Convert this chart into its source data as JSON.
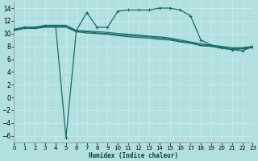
{
  "xlabel": "Humidex (Indice chaleur)",
  "background_color": "#b2dfdf",
  "grid_color": "#c8e8e8",
  "line_color": "#1a6b6b",
  "x_ticks": [
    0,
    1,
    2,
    3,
    4,
    5,
    6,
    7,
    8,
    9,
    10,
    11,
    12,
    13,
    14,
    15,
    16,
    17,
    18,
    19,
    20,
    21,
    22,
    23
  ],
  "y_ticks": [
    -6,
    -4,
    -2,
    0,
    2,
    4,
    6,
    8,
    10,
    12,
    14
  ],
  "xlim": [
    0,
    23
  ],
  "ylim": [
    -7,
    15
  ],
  "line1_y": [
    10.7,
    11.0,
    11.0,
    11.3,
    11.3,
    11.3,
    10.5,
    10.4,
    10.3,
    10.2,
    10.0,
    9.9,
    9.8,
    9.6,
    9.5,
    9.3,
    9.0,
    8.7,
    8.4,
    8.2,
    8.0,
    7.8,
    7.8,
    8.0
  ],
  "line2_y": [
    10.5,
    10.8,
    10.8,
    11.0,
    11.0,
    11.0,
    10.3,
    10.1,
    10.0,
    9.9,
    9.7,
    9.5,
    9.4,
    9.3,
    9.1,
    9.0,
    8.7,
    8.5,
    8.1,
    8.0,
    7.7,
    7.5,
    7.6,
    7.8
  ],
  "line3_y": [
    10.6,
    10.9,
    10.9,
    11.1,
    11.1,
    11.2,
    10.4,
    10.3,
    10.1,
    10.0,
    9.8,
    9.7,
    9.6,
    9.5,
    9.3,
    9.2,
    8.8,
    8.6,
    8.2,
    8.1,
    7.9,
    7.6,
    7.7,
    7.9
  ],
  "line4_y": [
    10.6,
    11.0,
    11.0,
    11.2,
    11.2,
    -6.3,
    10.5,
    13.3,
    11.0,
    11.0,
    13.5,
    13.7,
    13.7,
    13.7,
    14.0,
    14.0,
    13.7,
    12.8,
    9.0,
    8.2,
    7.8,
    7.5,
    7.3,
    8.0
  ]
}
